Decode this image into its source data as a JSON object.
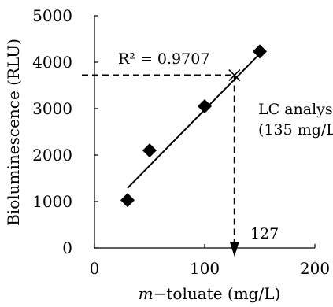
{
  "chart_data": {
    "type": "scatter",
    "title": "",
    "xlabel_italic": "m",
    "xlabel_rest": "−toluate (mg/L)",
    "ylabel": "Bioluminescence (RLU)",
    "xlim": [
      0,
      200
    ],
    "ylim": [
      0,
      5000
    ],
    "x_ticks": [
      "0",
      "100",
      "200"
    ],
    "y_ticks": [
      "0",
      "1000",
      "2000",
      "3000",
      "4000",
      "5000"
    ],
    "x_tick_values": [
      0,
      100,
      200
    ],
    "y_tick_values": [
      0,
      1000,
      2000,
      3000,
      4000,
      5000
    ],
    "grid": false,
    "points": [
      {
        "x": 30,
        "y": 1030
      },
      {
        "x": 50,
        "y": 2100
      },
      {
        "x": 100,
        "y": 3050
      },
      {
        "x": 150,
        "y": 4230
      }
    ],
    "fit_line": {
      "x_start": 30,
      "y_start": 1290,
      "x_end": 152,
      "y_end": 4230
    },
    "r_squared_label": "R² = 0.9707",
    "lc_analysis_label": "LC analys",
    "lc_value_label": "(135 mg/L",
    "intersection": {
      "x": 127,
      "y": 3720
    },
    "intersection_label": "127"
  }
}
